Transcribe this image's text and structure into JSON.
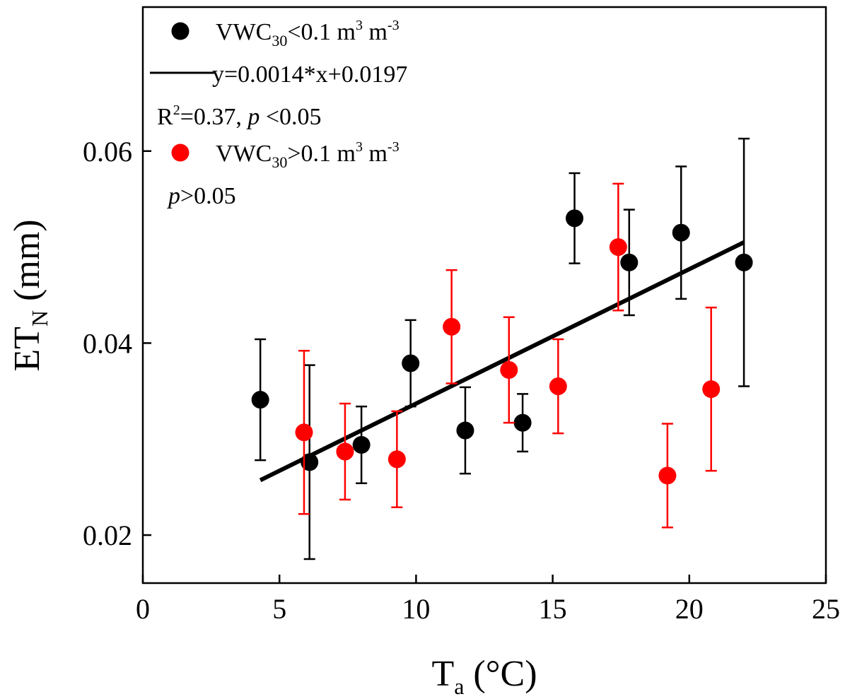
{
  "chart_data": {
    "type": "scatter",
    "title": "",
    "xlabel": {
      "main": "T",
      "sub": "a",
      "unit": " (°C)"
    },
    "ylabel": {
      "main": "ET",
      "sub": "N",
      "unit": " (mm)"
    },
    "xlim": [
      0,
      25
    ],
    "ylim": [
      0.015,
      0.075
    ],
    "x_ticks": [
      0,
      5,
      10,
      15,
      20,
      25
    ],
    "x_tick_labels": [
      "0",
      "5",
      "10",
      "15",
      "20",
      "25"
    ],
    "y_ticks": [
      0.02,
      0.04,
      0.06
    ],
    "y_tick_labels": [
      "0.02",
      "0.04",
      "0.06"
    ],
    "grid": false,
    "legend_position": "top-left",
    "series": [
      {
        "name": "VWC30<0.1 m3 m-3",
        "color": "#000000",
        "points": [
          {
            "x": 4.3,
            "y": 0.0341,
            "err": 0.0063
          },
          {
            "x": 6.1,
            "y": 0.0276,
            "err": 0.0101
          },
          {
            "x": 8.0,
            "y": 0.0294,
            "err": 0.004
          },
          {
            "x": 9.8,
            "y": 0.0379,
            "err": 0.0045
          },
          {
            "x": 11.8,
            "y": 0.0309,
            "err": 0.0045
          },
          {
            "x": 13.9,
            "y": 0.0317,
            "err": 0.003
          },
          {
            "x": 15.8,
            "y": 0.053,
            "err": 0.0047
          },
          {
            "x": 17.8,
            "y": 0.0484,
            "err": 0.0055
          },
          {
            "x": 19.7,
            "y": 0.0515,
            "err": 0.0069
          },
          {
            "x": 22.0,
            "y": 0.0484,
            "err": 0.0129
          }
        ],
        "fit": {
          "slope": 0.0014,
          "intercept": 0.0197,
          "x_range": [
            4.3,
            22.0
          ]
        }
      },
      {
        "name": "VWC30>0.1 m3 m-3",
        "color": "#ff0000",
        "points": [
          {
            "x": 5.9,
            "y": 0.0307,
            "err": 0.0085
          },
          {
            "x": 7.4,
            "y": 0.0287,
            "err": 0.005
          },
          {
            "x": 9.3,
            "y": 0.0279,
            "err": 0.005
          },
          {
            "x": 11.3,
            "y": 0.0417,
            "err": 0.0059
          },
          {
            "x": 13.4,
            "y": 0.0372,
            "err": 0.0055
          },
          {
            "x": 15.2,
            "y": 0.0355,
            "err": 0.0049
          },
          {
            "x": 17.4,
            "y": 0.05,
            "err": 0.0066
          },
          {
            "x": 19.2,
            "y": 0.0262,
            "err": 0.0054
          },
          {
            "x": 20.8,
            "y": 0.0352,
            "err": 0.0085
          }
        ]
      }
    ],
    "legend": {
      "black_label": {
        "prefix": "VWC",
        "sub": "30",
        "rest": "<0.1 m",
        "sup1": "3",
        "mid": " m",
        "sup2": "-3"
      },
      "fit_label": "y=0.0014*x+0.0197",
      "stats_black": {
        "r": "R",
        "r_sup": "2",
        "r_rest": "=0.37, ",
        "p": "p",
        "p_rest": " <0.05"
      },
      "red_label": {
        "prefix": "VWC",
        "sub": "30",
        "rest": ">0.1 m",
        "sup1": "3",
        "mid": " m",
        "sup2": "-3"
      },
      "stats_red": {
        "p": "p",
        "p_rest": ">0.05"
      }
    }
  }
}
